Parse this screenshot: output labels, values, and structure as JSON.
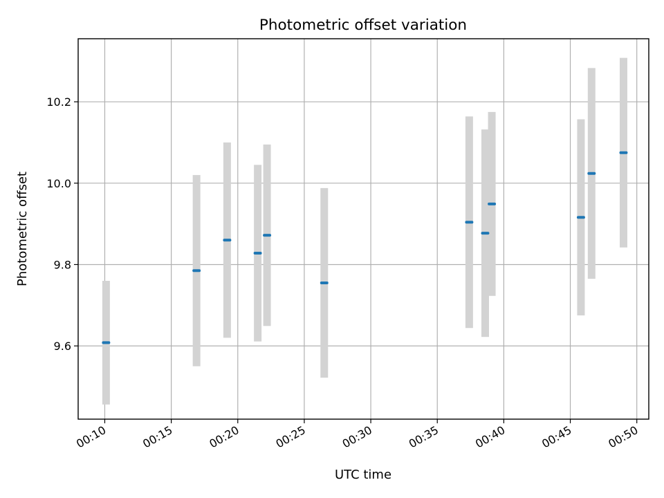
{
  "chart_data": {
    "type": "scatter",
    "title": "Photometric offset variation",
    "xlabel": "UTC time",
    "ylabel": "Photometric offset",
    "x_unit": "minutes past 00:00 UTC",
    "xlim": [
      8.0,
      50.9
    ],
    "ylim": [
      9.42,
      10.355
    ],
    "x_ticks": [
      {
        "value": 10,
        "label": "00:10"
      },
      {
        "value": 15,
        "label": "00:15"
      },
      {
        "value": 20,
        "label": "00:20"
      },
      {
        "value": 25,
        "label": "00:25"
      },
      {
        "value": 30,
        "label": "00:30"
      },
      {
        "value": 35,
        "label": "00:35"
      },
      {
        "value": 40,
        "label": "00:40"
      },
      {
        "value": 45,
        "label": "00:45"
      },
      {
        "value": 50,
        "label": "00:50"
      }
    ],
    "y_ticks": [
      {
        "value": 9.6,
        "label": "9.6"
      },
      {
        "value": 9.8,
        "label": "9.8"
      },
      {
        "value": 10.0,
        "label": "10.0"
      },
      {
        "value": 10.2,
        "label": "10.2"
      }
    ],
    "grid": true,
    "colors": {
      "points": "#1f77b4",
      "errorbars": "#d3d3d3"
    },
    "points": [
      {
        "x": 10.1,
        "y": 9.608,
        "yerr": 0.152
      },
      {
        "x": 16.9,
        "y": 9.785,
        "yerr": 0.235
      },
      {
        "x": 19.2,
        "y": 9.86,
        "yerr": 0.24
      },
      {
        "x": 21.5,
        "y": 9.828,
        "yerr": 0.217
      },
      {
        "x": 22.2,
        "y": 9.872,
        "yerr": 0.223
      },
      {
        "x": 26.5,
        "y": 9.755,
        "yerr": 0.233
      },
      {
        "x": 37.4,
        "y": 9.904,
        "yerr": 0.26
      },
      {
        "x": 38.6,
        "y": 9.877,
        "yerr": 0.255
      },
      {
        "x": 39.1,
        "y": 9.949,
        "yerr": 0.226
      },
      {
        "x": 45.8,
        "y": 9.916,
        "yerr": 0.241
      },
      {
        "x": 46.6,
        "y": 10.024,
        "yerr": 0.259
      },
      {
        "x": 49.0,
        "y": 10.075,
        "yerr": 0.233
      }
    ]
  }
}
